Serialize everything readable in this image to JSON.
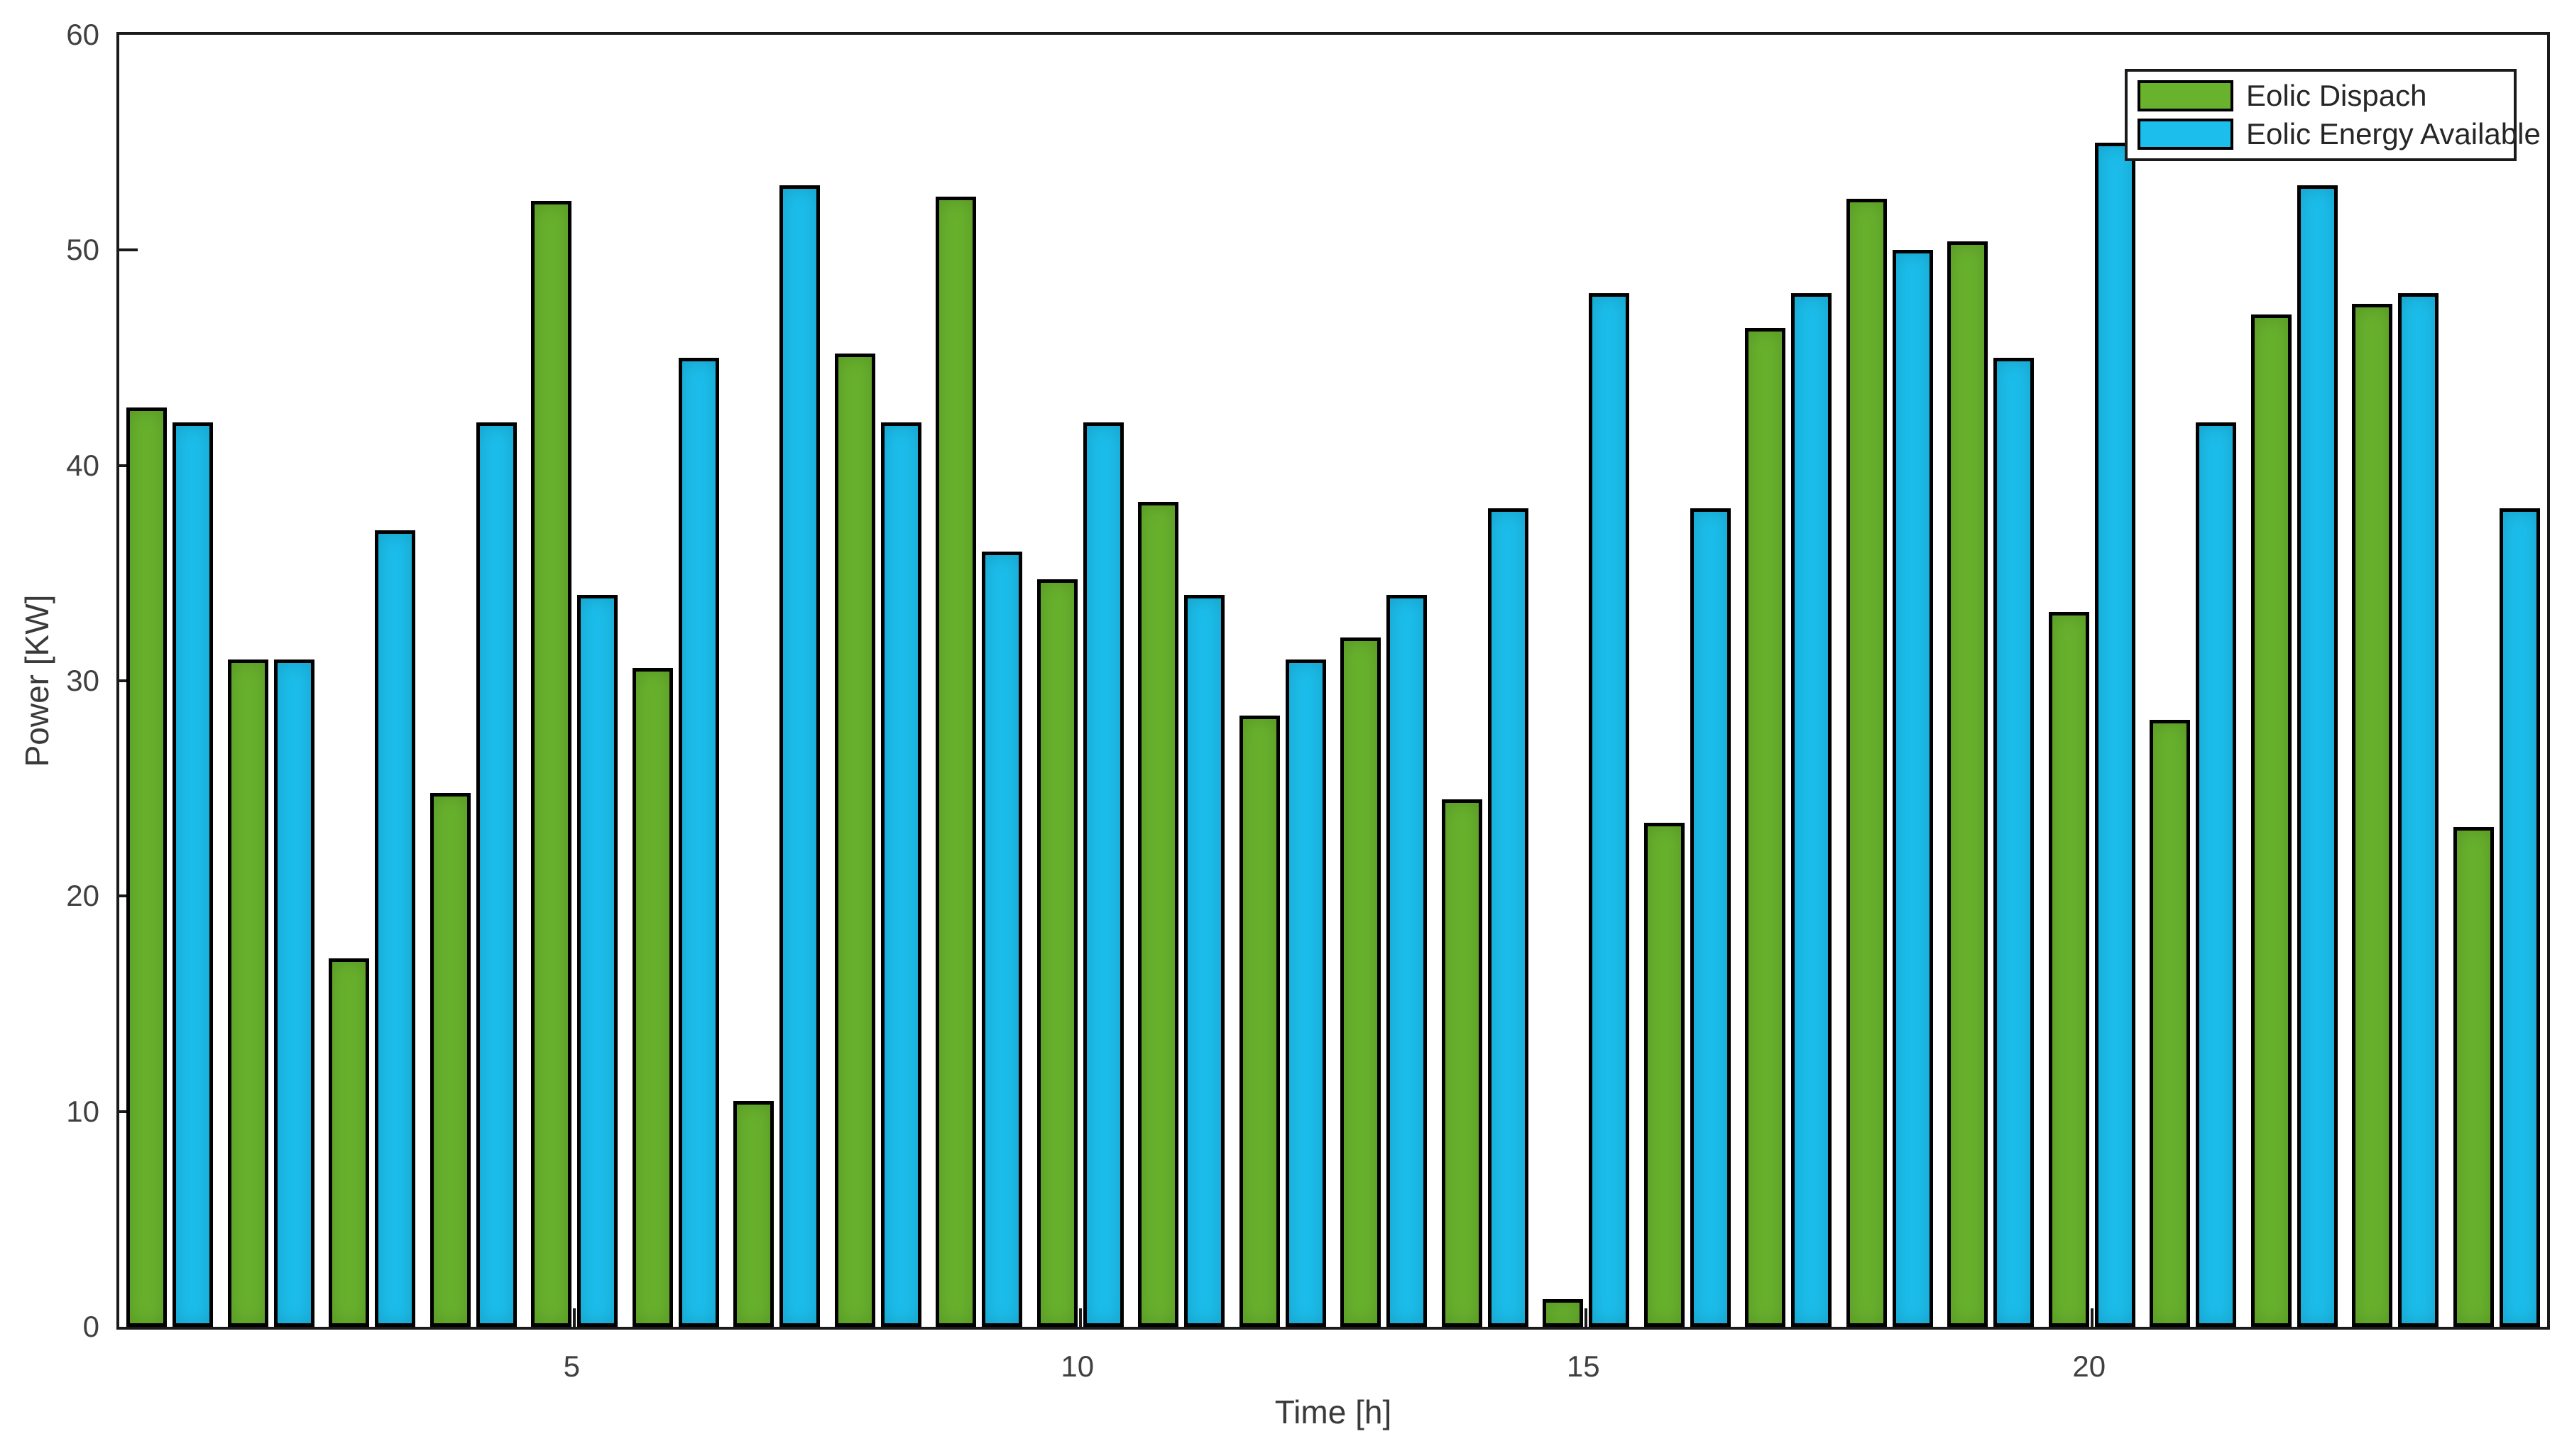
{
  "chart_data": {
    "type": "bar",
    "title": "",
    "xlabel": "Time [h]",
    "ylabel": "Power [KW]",
    "categories": [
      1,
      2,
      3,
      4,
      5,
      6,
      7,
      8,
      9,
      10,
      11,
      12,
      13,
      14,
      15,
      16,
      17,
      18,
      19,
      20,
      21,
      22,
      23,
      24
    ],
    "series": [
      {
        "name": "Eolic Dispach",
        "color": "#68b22d",
        "values": [
          42.7,
          31,
          17.1,
          24.8,
          52.3,
          30.6,
          10.5,
          45.2,
          52.5,
          34.7,
          38.3,
          28.4,
          32,
          24.5,
          1.3,
          23.4,
          46.4,
          52.4,
          50.4,
          33.2,
          28.2,
          47,
          47.5,
          23.2
        ]
      },
      {
        "name": "Eolic Energy Available",
        "color": "#1cbeec",
        "values": [
          42,
          31,
          37,
          42,
          34,
          45,
          53,
          42,
          36,
          42,
          34,
          31,
          34,
          38,
          48,
          38,
          48,
          50,
          45,
          55,
          42,
          53,
          48,
          38
        ]
      }
    ],
    "ylim": [
      0,
      60
    ],
    "xlim": [
      0.5,
      24.5
    ],
    "yticks": [
      0,
      10,
      20,
      30,
      40,
      50,
      60
    ],
    "xticks": [
      5,
      10,
      15,
      20
    ],
    "grid": false,
    "legend_position": "top-right",
    "bar_edge_color": "#000000",
    "frame_color": "#1a1a1a",
    "tick_text_color": "#404040"
  }
}
